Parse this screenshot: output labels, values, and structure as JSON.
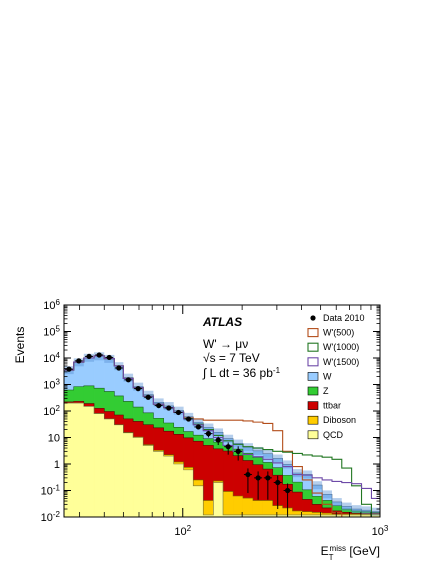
{
  "chart_data": {
    "type": "histogram",
    "xscale": "log",
    "yscale": "log",
    "xlim": [
      25,
      1000
    ],
    "ylim": [
      0.01,
      1000000
    ],
    "xticks": [
      {
        "value": 100,
        "label": "10",
        "exp": "2"
      },
      {
        "value": 1000,
        "label": "10",
        "exp": "3"
      }
    ],
    "yticks": [
      {
        "value": 0.01,
        "label": "10",
        "exp": "-2"
      },
      {
        "value": 0.1,
        "label": "10",
        "exp": "-1"
      },
      {
        "value": 1,
        "label": "1",
        "exp": ""
      },
      {
        "value": 10,
        "label": "10",
        "exp": ""
      },
      {
        "value": 100,
        "label": "10",
        "exp": "2"
      },
      {
        "value": 1000,
        "label": "10",
        "exp": "3"
      },
      {
        "value": 10000,
        "label": "10",
        "exp": "4"
      },
      {
        "value": 100000,
        "label": "10",
        "exp": "5"
      },
      {
        "value": 1000000,
        "label": "10",
        "exp": "6"
      }
    ],
    "xlabel_main": "E",
    "xlabel_sub": "T",
    "xlabel_sup": "miss",
    "xlabel_unit": " [GeV]",
    "ylabel": "Events",
    "bin_edges": [
      25,
      28,
      31.5,
      35.5,
      40,
      45,
      50,
      56,
      63,
      71,
      80,
      90,
      101,
      113,
      127,
      143,
      160,
      180,
      202,
      227,
      255,
      286,
      321,
      360,
      404,
      453,
      509,
      571,
      640,
      718,
      806,
      905,
      1000
    ],
    "stack_order_bottom_to_top": [
      "QCD",
      "Diboson",
      "ttbar",
      "Z",
      "W"
    ],
    "stack": [
      {
        "name": "QCD",
        "color": "#ffff99",
        "values": [
          200,
          200,
          150,
          80,
          50,
          30,
          15,
          10,
          5,
          3,
          2,
          1,
          0.6,
          0.15,
          0.012,
          0.2,
          0.012,
          0.012,
          0.012,
          0.012,
          0.012,
          0.012,
          0.012,
          0.012,
          0.012,
          0.012,
          0.012,
          0.012,
          0.012,
          0.012,
          0.012,
          0.012
        ]
      },
      {
        "name": "Diboson",
        "color": "#ffcc00",
        "values": [
          0.5,
          0.6,
          0.7,
          0.7,
          0.7,
          0.6,
          0.5,
          0.45,
          0.4,
          0.3,
          0.25,
          0.2,
          0.15,
          0.1,
          0.03,
          0.03,
          0.08,
          0.05,
          0.04,
          0.03,
          0.03,
          0.015,
          0.01,
          0.005,
          0.004,
          0.003,
          0.002,
          0.001,
          0.001,
          0.001,
          0.001,
          0.001
        ]
      },
      {
        "name": "ttbar",
        "color": "#cc0000",
        "values": [
          20,
          30,
          40,
          45,
          45,
          40,
          35,
          30,
          25,
          20,
          15,
          12,
          9,
          7,
          5,
          3.5,
          3,
          2,
          1.3,
          0.9,
          0.6,
          0.35,
          0.15,
          0.07,
          0.03,
          0.015,
          0.008,
          0.004,
          0.002,
          0.001,
          0.001,
          0.001
        ]
      },
      {
        "name": "Z",
        "color": "#33cc33",
        "values": [
          400,
          600,
          700,
          600,
          450,
          300,
          180,
          100,
          55,
          30,
          18,
          11,
          7,
          5,
          4,
          3,
          2,
          1.6,
          1.2,
          0.8,
          0.5,
          0.35,
          0.2,
          0.12,
          0.06,
          0.03,
          0.02,
          0.01,
          0.005,
          0.003,
          0.002,
          0.001
        ]
      },
      {
        "name": "W",
        "color": "#99ccff",
        "values": [
          2900,
          6100,
          9400,
          11000,
          8800,
          4600,
          1600,
          700,
          330,
          160,
          120,
          80,
          44,
          25,
          15,
          9,
          4,
          2.3,
          1.8,
          1.4,
          1.3,
          0.9,
          0.6,
          0.25,
          0.3,
          0.1,
          0.03,
          0.01,
          0.005,
          0.003,
          0.002,
          0.001
        ]
      }
    ],
    "signals": [
      {
        "name": "W'(500)",
        "color": "#b34d1a",
        "values": [
          3500,
          7000,
          10000,
          12000,
          9500,
          5000,
          1700,
          760,
          360,
          180,
          135,
          90,
          55,
          50,
          45,
          45,
          45,
          45,
          42,
          38,
          34,
          18,
          3,
          0.8,
          0.25,
          0.08,
          0.03,
          0.015,
          0.01,
          0.01,
          0.01,
          0.01
        ]
      },
      {
        "name": "W'(1000)",
        "color": "#227722",
        "values": [
          3500,
          7000,
          10000,
          12000,
          9500,
          5000,
          1700,
          760,
          360,
          180,
          135,
          90,
          52,
          32,
          20,
          12,
          7.5,
          5.5,
          4.5,
          4,
          3.5,
          3,
          2.8,
          2.5,
          2.2,
          2,
          1.8,
          1.5,
          0.7,
          0.15,
          0.03,
          0.01
        ]
      },
      {
        "name": "W'(1500)",
        "color": "#6e4aa8",
        "values": [
          3500,
          7000,
          10000,
          12000,
          9500,
          5000,
          1700,
          760,
          360,
          180,
          135,
          90,
          50,
          30,
          18,
          10,
          5,
          3,
          2.3,
          1.9,
          1.5,
          1.1,
          0.8,
          0.4,
          0.38,
          0.3,
          0.25,
          0.22,
          0.2,
          0.18,
          0.12,
          0.05
        ]
      }
    ],
    "mc_error_band": {
      "color": "#5b93d4",
      "low_frac": 0.7,
      "high_frac": 1.4
    },
    "data": {
      "name": "Data 2010",
      "x": [
        26.5,
        29.7,
        33.5,
        37.7,
        42.4,
        47.4,
        53,
        59.4,
        66.8,
        75.5,
        84.9,
        95.1,
        107,
        120,
        135,
        151.3,
        170,
        191,
        214,
        241,
        270,
        303,
        340
      ],
      "y": [
        3800,
        7800,
        11500,
        13000,
        10500,
        4200,
        1500,
        700,
        330,
        160,
        130,
        88,
        50,
        25,
        14,
        8,
        4.5,
        3,
        0.4,
        0.3,
        0.3,
        0.2,
        0.1
      ],
      "err_low": [
        0.03,
        0.02,
        0.02,
        0.02,
        0.02,
        0.03,
        0.05,
        0.06,
        0.08,
        0.1,
        0.1,
        0.12,
        0.15,
        0.2,
        0.28,
        0.35,
        0.5,
        0.55,
        0.8,
        0.85,
        0.85,
        0.9,
        0.95
      ],
      "err_high": [
        0.03,
        0.02,
        0.02,
        0.02,
        0.02,
        0.03,
        0.05,
        0.06,
        0.08,
        0.1,
        0.1,
        0.12,
        0.15,
        0.2,
        0.28,
        0.35,
        0.45,
        0.55,
        0.7,
        0.75,
        0.75,
        0.8,
        0.85
      ]
    },
    "legend": {
      "placement": "top-right",
      "entries": [
        {
          "label": "Data 2010",
          "style": "marker"
        },
        {
          "label": "W'(500)",
          "style": "line",
          "color": "#b34d1a"
        },
        {
          "label": "W'(1000)",
          "style": "line",
          "color": "#227722"
        },
        {
          "label": "W'(1500)",
          "style": "line",
          "color": "#6e4aa8"
        },
        {
          "label": "W",
          "style": "fill",
          "color": "#99ccff"
        },
        {
          "label": "Z",
          "style": "fill",
          "color": "#33cc33"
        },
        {
          "label": "ttbar",
          "style": "fill",
          "color": "#cc0000"
        },
        {
          "label": "Diboson",
          "style": "fill",
          "color": "#ffcc00"
        },
        {
          "label": "QCD",
          "style": "fill",
          "color": "#ffff99"
        }
      ]
    },
    "annotations": {
      "atlas": "ATLAS",
      "process": "W' → μν",
      "energy": "√s = 7 TeV",
      "lumi_main": "∫ L dt = 36 pb",
      "lumi_sup": "-1"
    }
  }
}
